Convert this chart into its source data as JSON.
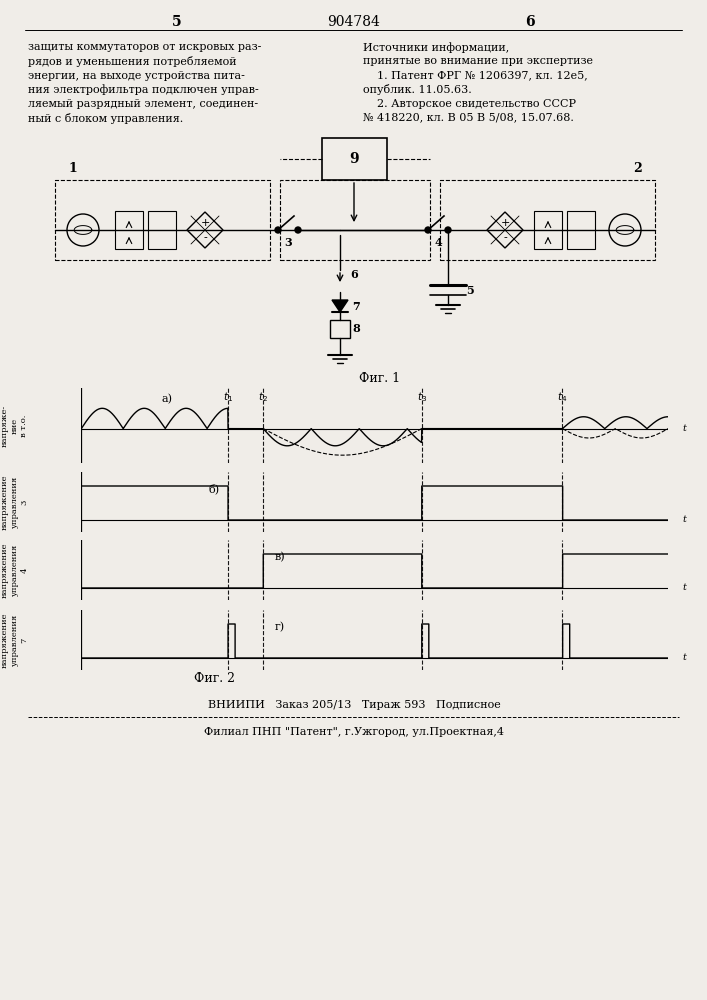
{
  "page_title": "904784",
  "page_left": "5",
  "page_right": "6",
  "left_text": "защиты коммутаторов от искровых раз-\nрядов и уменьшения потребляемой\nэнергии, на выходе устройства пита-\nния электрофильтра подключен управ-\nляемый разрядный элемент, соединен-\nный с блоком управления.",
  "right_text": "Источники информации,\nпринятые во внимание при экспертизе\n    1. Патент ФРГ № 1206397, кл. 12е5,\nопублик. 11.05.63.\n    2. Авторское свидетельство СССР\n№ 418220, кл. В 05 В 5/08, 15.07.68.",
  "fig1_label": "Фиг. 1",
  "fig2_label": "Фиг. 2",
  "bottom_line1": "ВНИИПИ   Заказ 205/13   Тираж 593   Подписное",
  "bottom_line2": "Филиал ПНП \"Патент\", г.Ужгород, ул.Проектная,4",
  "subplot_a_label": "а)",
  "subplot_b_label": "б)",
  "subplot_c_label": "в)",
  "subplot_d_label": "г)",
  "ylabel_a": "напряже-\nние\nв т.о.",
  "ylabel_b": "напряжение\nуправления\n3",
  "ylabel_c": "напряжение\nуправления\n4",
  "ylabel_d": "напряжение\nуправления\n7",
  "bg_color": "#f0ede8",
  "t1": 2.5,
  "t2": 3.1,
  "t3": 5.8,
  "t4": 8.2,
  "T": 10.0
}
